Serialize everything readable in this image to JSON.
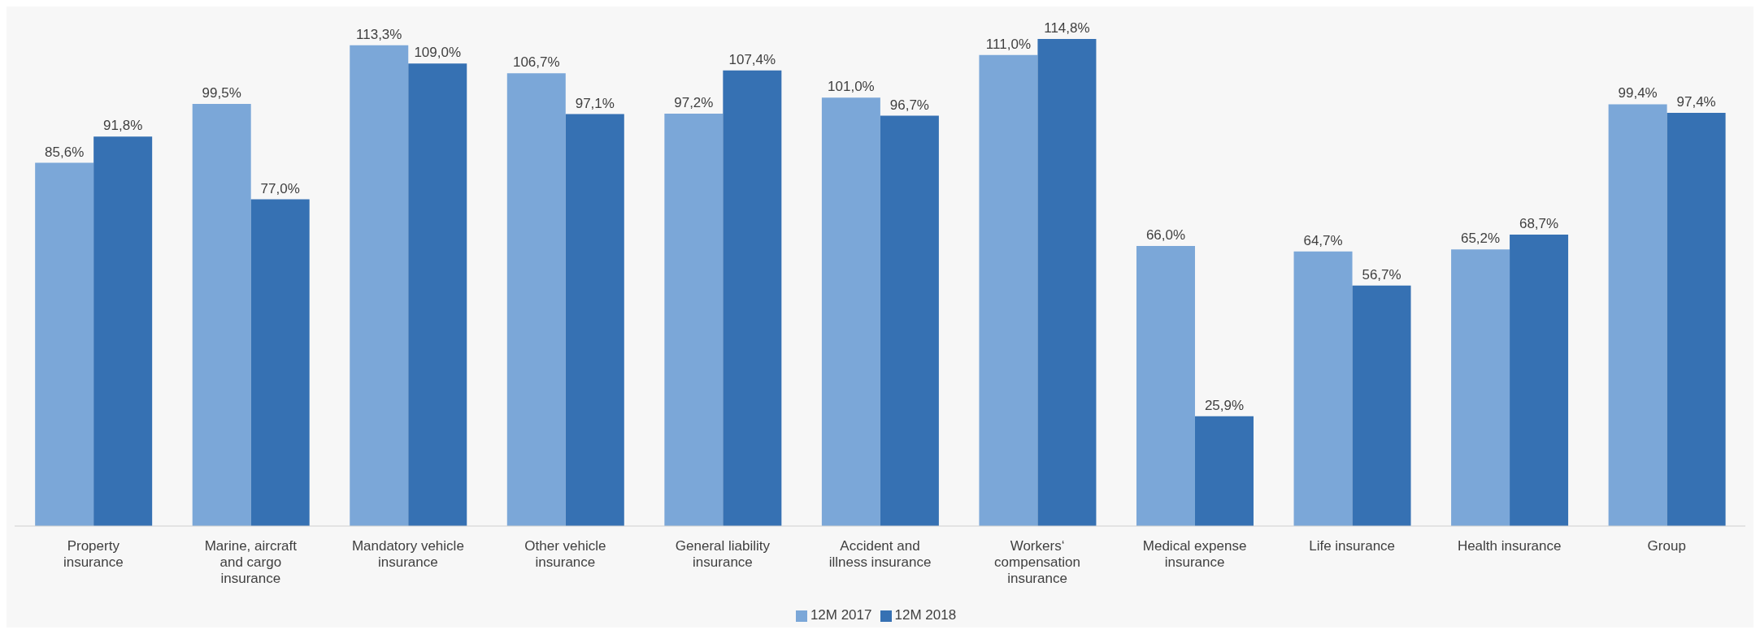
{
  "chart_data": {
    "type": "bar",
    "categories": [
      "Property insurance",
      "Marine, aircraft and cargo insurance",
      "Mandatory vehicle insurance",
      "Other vehicle insurance",
      "General liability insurance",
      "Accident and illness insurance",
      "Workers‘ compensation insurance",
      "Medical expense insurance",
      "Life insurance",
      "Health insurance",
      "Group"
    ],
    "series": [
      {
        "name": "12M 2017",
        "color": "#7ba7d8",
        "values": [
          85.6,
          99.5,
          113.3,
          106.7,
          97.2,
          101.0,
          111.0,
          66.0,
          64.7,
          65.2,
          99.4
        ],
        "value_labels": [
          "85,6%",
          "99,5%",
          "113,3%",
          "106,7%",
          "97,2%",
          "101,0%",
          "111,0%",
          "66,0%",
          "64,7%",
          "65,2%",
          "99,4%"
        ]
      },
      {
        "name": "12M 2018",
        "color": "#3671b3",
        "values": [
          91.8,
          77.0,
          109.0,
          97.1,
          107.4,
          96.7,
          114.8,
          25.9,
          56.7,
          68.7,
          97.4
        ],
        "value_labels": [
          "91,8%",
          "77,0%",
          "109,0%",
          "97,1%",
          "107,4%",
          "96,7%",
          "114,8%",
          "25,9%",
          "56,7%",
          "68,7%",
          "97,4%"
        ]
      }
    ],
    "legend": "bottom",
    "grid": false
  }
}
